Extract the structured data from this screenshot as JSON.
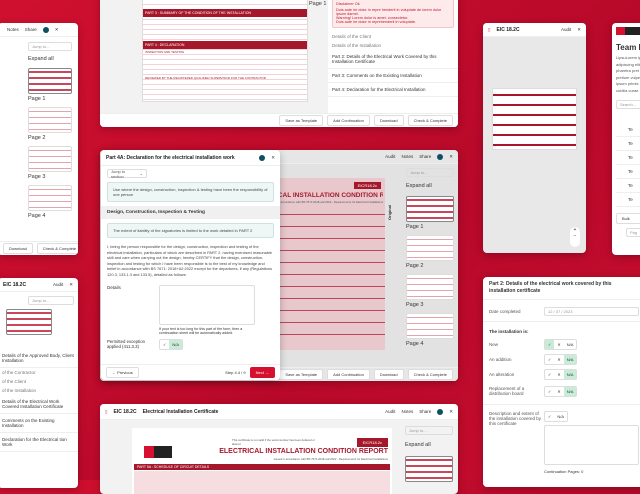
{
  "common": {
    "notes": "Notes",
    "share": "Share",
    "audit": "Audit",
    "jump_to": "Jump to...",
    "jump_to_section": "Jump to section",
    "expand_all": "Expand all",
    "pages": [
      "Page 1",
      "Page 2",
      "Page 3",
      "Page 4"
    ],
    "save_template": "Save as Template",
    "add_continuation": "Add Continuation",
    "download": "Download",
    "check_complete": "Check & Complete",
    "cert_code": "EIC 18.2C",
    "cert_title": "Electrical Installation Certificate",
    "avatar_initial": "T"
  },
  "top_center": {
    "doc_heading_3": "PART 3 : SUMMARY OF THE CONDITION OF THE INSTALLATION",
    "doc_heading_4": "PART 4 : DECLARATION",
    "doc_sub_1": "INSPECTION AND TESTING",
    "doc_sub_2": "REVIEWED BY THE REGISTERED QUALIFIED SUPERVISOR FOR THE CONTRACTOR",
    "disclaimer_title": "Disclaimer Ok",
    "disclaimer_items": [
      "Duis aute ire dolor in repre henderit in voluptate de lorem dolor ipsum damet.",
      "Warning! Lorem dolor is amet, consectetur.",
      "Duis aute ire dolor in reprehenderit in voluptate."
    ],
    "sections": [
      "Details of the Client",
      "Details of the Installation",
      "Part 2: Details of the Electrical Work Covered by this Installation Certificate",
      "Part 3: Comments on the Existing Installation",
      "Part 4: Declaration for the Electrical Installation"
    ]
  },
  "modal": {
    "title": "Part 4A:  Declaration for the electrical installation work",
    "info_1": "Use where the design, construction, inspection & testing have been the responsibility of one person",
    "section": "Design, Construction, Inspection & Testing",
    "info_2": "The extent of liability of the signatories is limited to the work detailed in PART 2",
    "body": "I, being the person responsible for the design, construction, inspection and testing of the electrical installation, particulars of which are described in PART 2, having exercised reasonable skill and care when carrying out the design, hereby CERTIFY that the design, construction, inspection and testing for which I have been responsible is to the best of my knowledge and belief in accordance with BS 7671: 2018+A2:2022 except for the departures, if any (Regulations 120.3, 133.1.3 and 133.5), detailed as follows:",
    "details_label": "Details",
    "details_hint": "If your text is too long for this part of the form, then a continuation sheet will be automatically added.",
    "exception_label": "Permitted exception applied (411.3.3)",
    "na": "N/A",
    "previous": "Previous",
    "step": "Step 4.4 / 9",
    "next": "Next"
  },
  "report": {
    "title": "ELECTRICAL INSTALLATION CONDITION REPORT",
    "code": "EICR18.2c",
    "note": "This certificate is not valid if the serial number has been defaced or altered",
    "issued": "Issued in accordance with BS 7671:2018+A2:2022 - Requirements for Electrical Installations",
    "schedule": "PART 5A : SCHEDULE OF CIRCUIT DETAILS",
    "original": "Original"
  },
  "bottom_left": {
    "sections": [
      "Details of the Approved Body, Client Installation",
      "of the Contractor",
      "of the Client",
      "of the Installation",
      "Details of the Electrical Work Covered Installation Certificate",
      "Comments on the Existing Installation",
      "Declaration for the Electrical tion Work"
    ]
  },
  "part2": {
    "title": "Part 2: Details of the electrical work covered by this installation certificate",
    "date_label": "Date completed",
    "date_value": "12 / 07 / 2023",
    "installation_is": "The installation is:",
    "rows": [
      {
        "label": "New",
        "sel": "yes"
      },
      {
        "label": "An addition",
        "sel": "na"
      },
      {
        "label": "An alteration",
        "sel": "na"
      },
      {
        "label": "Replacement of a distribution board",
        "sel": "na"
      }
    ],
    "description_label": "Description and extent of the installation covered by this certificate",
    "continuation": "Continuation Pages: 0",
    "yes": "✓",
    "no": "✕",
    "na": "N/A"
  },
  "team": {
    "title": "Team Li",
    "desc": "LipsuLorem ip adipiscing elit pharetra pret pretium vulpe ipsum primis cubilia curae",
    "search_placeholder": "Search...",
    "rows": [
      "Te",
      "Te",
      "Te",
      "Te",
      "Te",
      "Te"
    ],
    "bulk": "Bulk",
    "page_placeholder": "Pag"
  },
  "colors": {
    "brand": "#d6112f",
    "teal": "#0d4f63",
    "success": "#c9ecd9"
  }
}
